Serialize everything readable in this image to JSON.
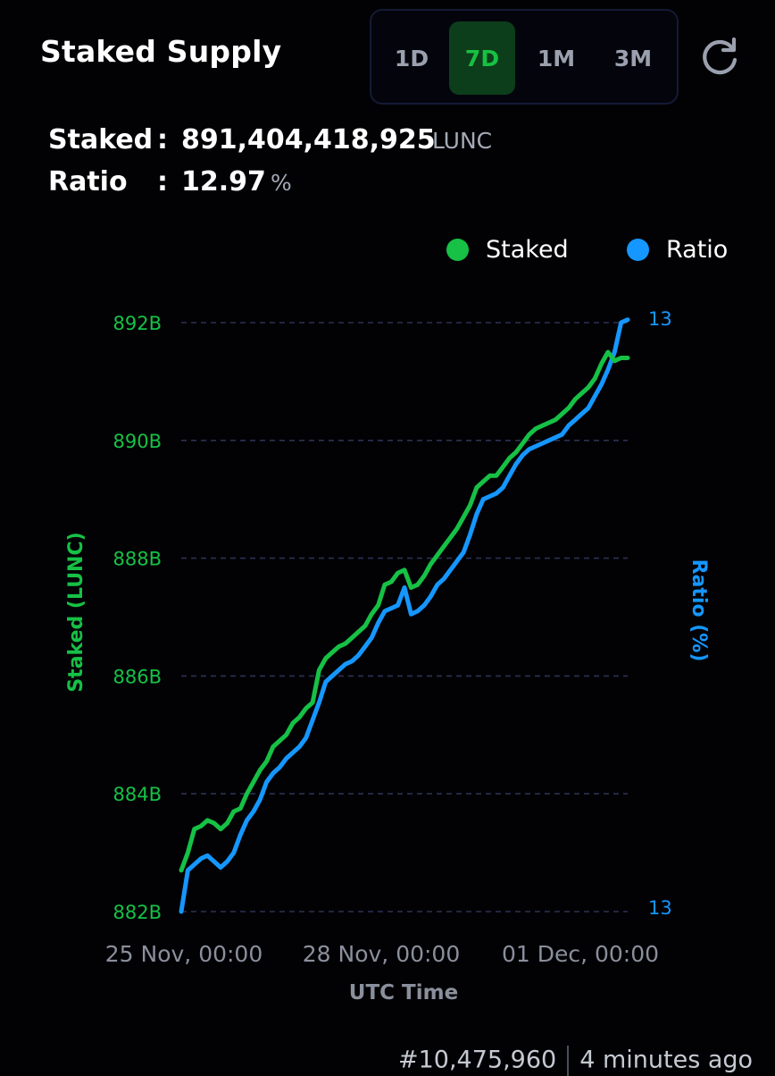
{
  "header": {
    "title": "Staked Supply",
    "ranges": [
      "1D",
      "7D",
      "1M",
      "3M"
    ],
    "active_range": "7D"
  },
  "stats": {
    "staked_label": "Staked",
    "staked_value": "891,404,418,925",
    "staked_unit": "LUNC",
    "ratio_label": "Ratio",
    "ratio_value": "12.97",
    "ratio_unit": "%",
    "colon": ":"
  },
  "legend": [
    {
      "label": "Staked",
      "color": "#16c145"
    },
    {
      "label": "Ratio",
      "color": "#1597ff"
    }
  ],
  "footer": {
    "block": "#10,475,960",
    "ago": "4 minutes ago"
  },
  "chart_data": {
    "type": "line",
    "xlabel": "UTC Time",
    "x_ticks": [
      "25 Nov, 00:00",
      "28 Nov, 00:00",
      "01 Dec, 00:00"
    ],
    "y_left": {
      "label": "Staked (LUNC)",
      "ticks": [
        "882B",
        "884B",
        "886B",
        "888B",
        "890B",
        "892B"
      ],
      "tick_values": [
        882,
        884,
        886,
        888,
        890,
        892
      ],
      "range": [
        882,
        892
      ],
      "color": "#16c145"
    },
    "y_right": {
      "label": "Ratio (%)",
      "ticks": [
        "13",
        "13"
      ],
      "color": "#1597ff"
    },
    "grid": true,
    "x_start": "25 Nov, 00:00",
    "x_step_hours": 2,
    "series": [
      {
        "name": "Staked",
        "axis": "left",
        "color": "#16c145",
        "values": [
          882.7,
          883.0,
          883.4,
          883.45,
          883.55,
          883.5,
          883.4,
          883.5,
          883.7,
          883.75,
          884.0,
          884.2,
          884.4,
          884.55,
          884.8,
          884.9,
          885.0,
          885.2,
          885.3,
          885.45,
          885.55,
          886.1,
          886.3,
          886.4,
          886.5,
          886.55,
          886.65,
          886.75,
          886.85,
          887.05,
          887.2,
          887.55,
          887.6,
          887.75,
          887.8,
          887.5,
          887.55,
          887.7,
          887.9,
          888.05,
          888.2,
          888.35,
          888.5,
          888.7,
          888.9,
          889.2,
          889.3,
          889.4,
          889.4,
          889.55,
          889.7,
          889.8,
          889.95,
          890.1,
          890.2,
          890.25,
          890.3,
          890.35,
          890.45,
          890.55,
          890.7,
          890.8,
          890.9,
          891.05,
          891.3,
          891.5,
          891.35,
          891.4,
          891.4
        ]
      },
      {
        "name": "Ratio",
        "axis": "right",
        "color": "#1597ff",
        "values": [
          882.0,
          882.7,
          882.8,
          882.9,
          882.95,
          882.85,
          882.75,
          882.85,
          883.0,
          883.3,
          883.55,
          883.7,
          883.9,
          884.2,
          884.35,
          884.45,
          884.6,
          884.7,
          884.8,
          884.95,
          885.25,
          885.55,
          885.9,
          886.0,
          886.1,
          886.2,
          886.25,
          886.35,
          886.5,
          886.65,
          886.9,
          887.1,
          887.15,
          887.2,
          887.5,
          887.05,
          887.1,
          887.2,
          887.35,
          887.55,
          887.65,
          887.8,
          887.95,
          888.1,
          888.4,
          888.75,
          889.0,
          889.05,
          889.1,
          889.2,
          889.4,
          889.6,
          889.75,
          889.85,
          889.9,
          889.95,
          890.0,
          890.05,
          890.1,
          890.25,
          890.35,
          890.45,
          890.55,
          890.75,
          890.95,
          891.2,
          891.5,
          892.0,
          892.05
        ]
      }
    ]
  }
}
